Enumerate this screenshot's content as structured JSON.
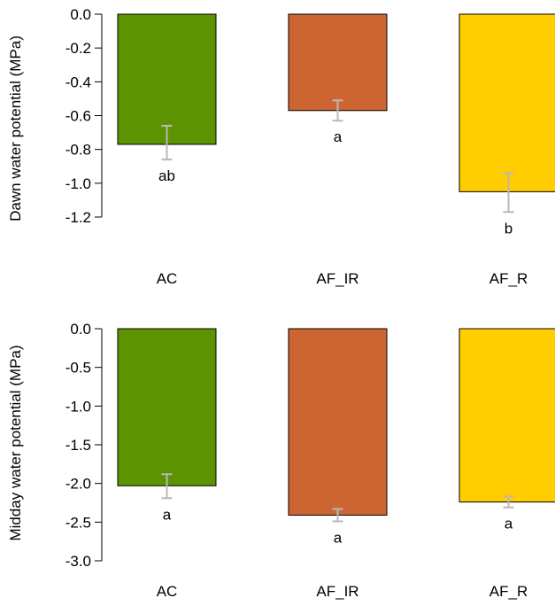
{
  "chart_data": [
    {
      "type": "bar",
      "ylabel": "Dawn water potential (MPa)",
      "xlabel": "",
      "categories": [
        "AC",
        "AF_IR",
        "AF_R"
      ],
      "values": [
        -0.77,
        -0.57,
        -1.05
      ],
      "error_low": [
        -0.86,
        -0.63,
        -1.17
      ],
      "error_high": [
        -0.66,
        -0.51,
        -0.94
      ],
      "significance_letters": [
        "ab",
        "a",
        "b"
      ],
      "yticks": [
        "0.0",
        "-0.2",
        "-0.4",
        "-0.6",
        "-0.8",
        "-1.0",
        "-1.2"
      ],
      "ytick_values": [
        0,
        -0.2,
        -0.4,
        -0.6,
        -0.8,
        -1.0,
        -1.2
      ],
      "ylim": [
        -1.2,
        0
      ],
      "grid": false
    },
    {
      "type": "bar",
      "ylabel": "Midday water potential (MPa)",
      "xlabel": "",
      "categories": [
        "AC",
        "AF_IR",
        "AF_R"
      ],
      "values": [
        -2.03,
        -2.41,
        -2.24
      ],
      "error_low": [
        -2.19,
        -2.49,
        -2.31
      ],
      "error_high": [
        -1.88,
        -2.33,
        -2.17
      ],
      "significance_letters": [
        "a",
        "a",
        "a"
      ],
      "yticks": [
        "0.0",
        "-0.5",
        "-1.0",
        "-1.5",
        "-2.0",
        "-2.5",
        "-3.0"
      ],
      "ytick_values": [
        0,
        -0.5,
        -1.0,
        -1.5,
        -2.0,
        -2.5,
        -3.0
      ],
      "ylim": [
        -3.0,
        0
      ],
      "grid": false
    }
  ],
  "colors": {
    "AC": "#5b9400",
    "AF_IR": "#cd6533",
    "AF_R": "#ffcd00",
    "error_bar": "#b9b9b9",
    "outline": "#000000"
  }
}
